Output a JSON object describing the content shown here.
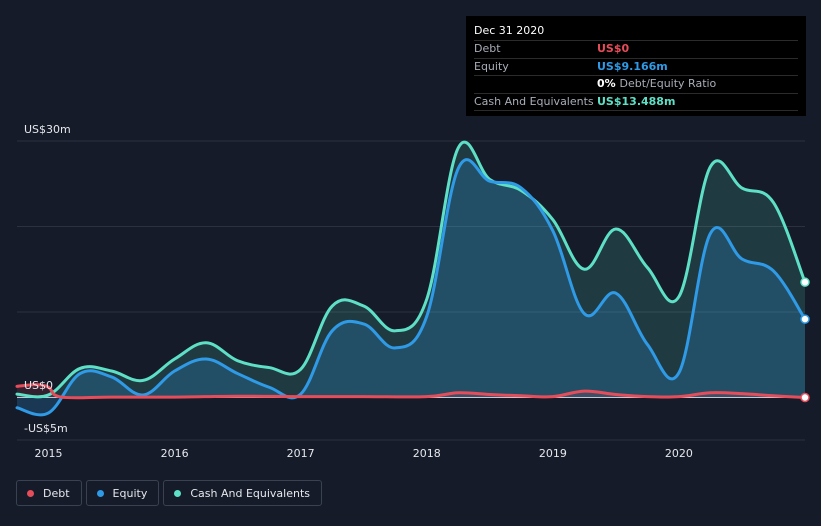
{
  "chart_data": {
    "type": "area",
    "title": "",
    "y_unit": "US$m",
    "ylim": [
      -5,
      30
    ],
    "y_tick_labels": [
      {
        "value": 30,
        "label": "US$30m"
      },
      {
        "value": 0,
        "label": "US$0"
      },
      {
        "value": -5,
        "label": "-US$5m"
      }
    ],
    "gridlines": [
      30,
      20,
      10,
      0
    ],
    "xlim": [
      2014.75,
      2021.0
    ],
    "x_ticks": [
      2015,
      2016,
      2017,
      2018,
      2019,
      2020
    ],
    "x_tick_labels": [
      "2015",
      "2016",
      "2017",
      "2018",
      "2019",
      "2020"
    ],
    "series": [
      {
        "name": "Debt",
        "color": "#e64d5b",
        "x": [
          2014.75,
          2014.9,
          2015.0,
          2015.1,
          2015.5,
          2016.0,
          2016.5,
          2017.0,
          2017.5,
          2018.0,
          2018.25,
          2018.5,
          2018.75,
          2019.0,
          2019.25,
          2019.5,
          2019.75,
          2020.0,
          2020.25,
          2020.5,
          2020.75,
          2021.0
        ],
        "values": [
          1.3,
          1.5,
          1.2,
          0.05,
          0.05,
          0.05,
          0.15,
          0.1,
          0.1,
          0.1,
          0.55,
          0.35,
          0.2,
          0.1,
          0.75,
          0.35,
          0.1,
          0.1,
          0.55,
          0.45,
          0.2,
          0.0
        ]
      },
      {
        "name": "Equity",
        "color": "#2f9ae6",
        "x": [
          2014.75,
          2015.0,
          2015.25,
          2015.5,
          2015.75,
          2016.0,
          2016.25,
          2016.5,
          2016.75,
          2017.0,
          2017.25,
          2017.5,
          2017.75,
          2018.0,
          2018.25,
          2018.5,
          2018.75,
          2019.0,
          2019.25,
          2019.5,
          2019.75,
          2020.0,
          2020.25,
          2020.5,
          2020.75,
          2021.0
        ],
        "values": [
          -1.2,
          -1.8,
          2.8,
          2.4,
          0.3,
          3.1,
          4.5,
          2.8,
          1.2,
          0.4,
          7.8,
          8.6,
          5.8,
          9.5,
          26.8,
          25.3,
          24.5,
          19.5,
          9.8,
          12.2,
          6.2,
          2.9,
          19.2,
          16.2,
          14.8,
          9.166
        ]
      },
      {
        "name": "Cash And Equivalents",
        "color": "#5ee0c6",
        "x": [
          2014.75,
          2015.0,
          2015.25,
          2015.5,
          2015.75,
          2016.0,
          2016.25,
          2016.5,
          2016.75,
          2017.0,
          2017.25,
          2017.5,
          2017.75,
          2018.0,
          2018.25,
          2018.5,
          2018.75,
          2019.0,
          2019.25,
          2019.5,
          2019.75,
          2020.0,
          2020.25,
          2020.5,
          2020.75,
          2021.0
        ],
        "values": [
          0.4,
          0.3,
          3.4,
          3.1,
          2.0,
          4.5,
          6.4,
          4.3,
          3.5,
          3.3,
          10.7,
          10.7,
          7.8,
          11.5,
          29.2,
          25.5,
          24.2,
          20.8,
          15.0,
          19.7,
          15.2,
          11.8,
          27.0,
          24.5,
          22.8,
          13.488
        ]
      }
    ]
  },
  "tooltip": {
    "date": "Dec 31 2020",
    "rows": [
      {
        "label": "Debt",
        "value": "US$0",
        "color": "#e64d5b"
      },
      {
        "label": "Equity",
        "value": "US$9.166m",
        "color": "#2f9ae6"
      },
      {
        "label": "",
        "value": "0%",
        "suffix": "Debt/Equity Ratio",
        "color": "#ffffff"
      },
      {
        "label": "Cash And Equivalents",
        "value": "US$13.488m",
        "color": "#5ee0c6"
      }
    ]
  },
  "legend": [
    {
      "label": "Debt",
      "color": "#e64d5b"
    },
    {
      "label": "Equity",
      "color": "#2f9ae6"
    },
    {
      "label": "Cash And Equivalents",
      "color": "#5ee0c6"
    }
  ]
}
